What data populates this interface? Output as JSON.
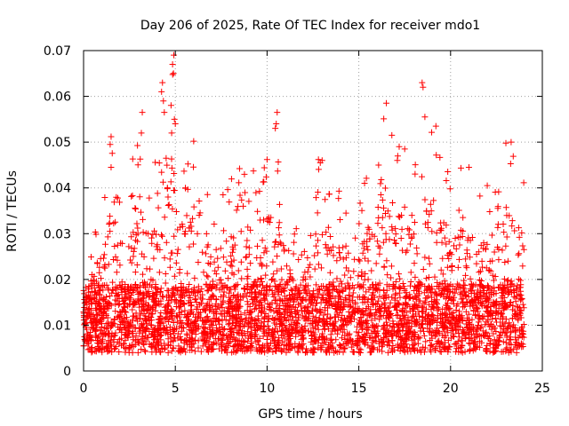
{
  "chart_data": {
    "type": "scatter",
    "title": "Day 206 of 2025, Rate Of TEC Index for receiver mdo1",
    "xlabel": "GPS time / hours",
    "ylabel": "ROTI / TECUs",
    "xlim": [
      0,
      25
    ],
    "ylim": [
      0,
      0.07
    ],
    "xticks": [
      0,
      5,
      10,
      15,
      20,
      25
    ],
    "xtick_labels": [
      "0",
      "5",
      "10",
      "15",
      "20",
      "25"
    ],
    "yticks": [
      0,
      0.01,
      0.02,
      0.03,
      0.04,
      0.05,
      0.06,
      0.07
    ],
    "ytick_labels": [
      "0",
      "0.01",
      "0.02",
      "0.03",
      "0.04",
      "0.05",
      "0.06",
      "0.07"
    ],
    "grid": true,
    "marker": "+",
    "series": [
      {
        "name": "ROTI",
        "color": "#ff0000",
        "x_range": [
          0,
          24
        ],
        "baseline": 0.011,
        "typical_spread": [
          0.003,
          0.025
        ],
        "envelope": [
          {
            "x": 0,
            "upper": 0.027
          },
          {
            "x": 1,
            "upper": 0.034
          },
          {
            "x": 1.5,
            "upper": 0.051
          },
          {
            "x": 2,
            "upper": 0.038
          },
          {
            "x": 3,
            "upper": 0.057
          },
          {
            "x": 3.5,
            "upper": 0.045
          },
          {
            "x": 4,
            "upper": 0.05
          },
          {
            "x": 4.3,
            "upper": 0.063
          },
          {
            "x": 4.9,
            "upper": 0.069
          },
          {
            "x": 5.5,
            "upper": 0.043
          },
          {
            "x": 6,
            "upper": 0.05
          },
          {
            "x": 7,
            "upper": 0.038
          },
          {
            "x": 8.5,
            "upper": 0.044
          },
          {
            "x": 10,
            "upper": 0.046
          },
          {
            "x": 10.5,
            "upper": 0.056
          },
          {
            "x": 11,
            "upper": 0.035
          },
          {
            "x": 12,
            "upper": 0.03
          },
          {
            "x": 12.8,
            "upper": 0.046
          },
          {
            "x": 14,
            "upper": 0.04
          },
          {
            "x": 15,
            "upper": 0.037
          },
          {
            "x": 16.5,
            "upper": 0.058
          },
          {
            "x": 17,
            "upper": 0.051
          },
          {
            "x": 18,
            "upper": 0.049
          },
          {
            "x": 18.5,
            "upper": 0.063
          },
          {
            "x": 19,
            "upper": 0.054
          },
          {
            "x": 20,
            "upper": 0.044
          },
          {
            "x": 21,
            "upper": 0.045
          },
          {
            "x": 22,
            "upper": 0.04
          },
          {
            "x": 23,
            "upper": 0.05
          },
          {
            "x": 24,
            "upper": 0.044
          }
        ],
        "sample_points": [
          [
            4.92,
            0.069
          ],
          [
            4.85,
            0.067
          ],
          [
            4.9,
            0.065
          ],
          [
            4.3,
            0.063
          ],
          [
            4.25,
            0.061
          ],
          [
            4.35,
            0.059
          ],
          [
            18.45,
            0.063
          ],
          [
            18.5,
            0.062
          ],
          [
            16.5,
            0.0585
          ],
          [
            3.2,
            0.0565
          ],
          [
            4.4,
            0.0565
          ],
          [
            10.55,
            0.0565
          ],
          [
            10.5,
            0.054
          ],
          [
            10.45,
            0.053
          ],
          [
            4.95,
            0.055
          ],
          [
            5.0,
            0.054
          ],
          [
            18.6,
            0.0555
          ],
          [
            19.2,
            0.0535
          ],
          [
            1.5,
            0.0512
          ],
          [
            1.45,
            0.0495
          ],
          [
            3.15,
            0.052
          ],
          [
            6.0,
            0.0502
          ],
          [
            4.8,
            0.052
          ],
          [
            16.8,
            0.0515
          ],
          [
            17.2,
            0.049
          ],
          [
            17.5,
            0.0485
          ],
          [
            23.3,
            0.05
          ],
          [
            12.8,
            0.0462
          ],
          [
            12.9,
            0.0455
          ],
          [
            13.0,
            0.046
          ],
          [
            10.0,
            0.0462
          ],
          [
            8.5,
            0.0442
          ],
          [
            17.1,
            0.046
          ],
          [
            1.5,
            0.0445
          ],
          [
            21.0,
            0.0445
          ],
          [
            4.5,
            0.0465
          ],
          [
            22.0,
            0.0405
          ],
          [
            14.3,
            0.0345
          ],
          [
            16.2,
            0.0385
          ],
          [
            7.6,
            0.0385
          ]
        ]
      }
    ]
  }
}
